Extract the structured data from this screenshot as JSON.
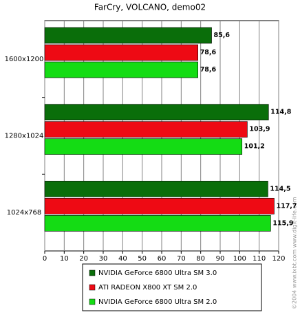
{
  "chart_data": {
    "type": "bar",
    "orientation": "horizontal",
    "title": "FarCry, VOLCANO, demo02",
    "categories": [
      "1600x1200",
      "1280x1024",
      "1024x768"
    ],
    "series": [
      {
        "name": "NVIDIA GeForce 6800 Ultra SM 3.0",
        "color": "#0a6e0a",
        "values": [
          85.6,
          114.8,
          114.5
        ],
        "value_labels": [
          "85,6",
          "114,8",
          "114,5"
        ]
      },
      {
        "name": "ATI RADEON X800 XT SM 2.0",
        "color": "#ee0a14",
        "values": [
          78.6,
          103.9,
          117.7
        ],
        "value_labels": [
          "78,6",
          "103,9",
          "117,7"
        ]
      },
      {
        "name": "NVIDIA GeForce 6800 Ultra SM 2.0",
        "color": "#14dc14",
        "values": [
          78.6,
          101.2,
          115.9
        ],
        "value_labels": [
          "78,6",
          "101,2",
          "115,9"
        ]
      }
    ],
    "xlim": [
      0,
      120
    ],
    "xticks": [
      0,
      10,
      20,
      30,
      40,
      50,
      60,
      70,
      80,
      90,
      100,
      110,
      120
    ],
    "grid": true,
    "watermark": "©2004 www.ixbt.com www.digit-life.com"
  }
}
